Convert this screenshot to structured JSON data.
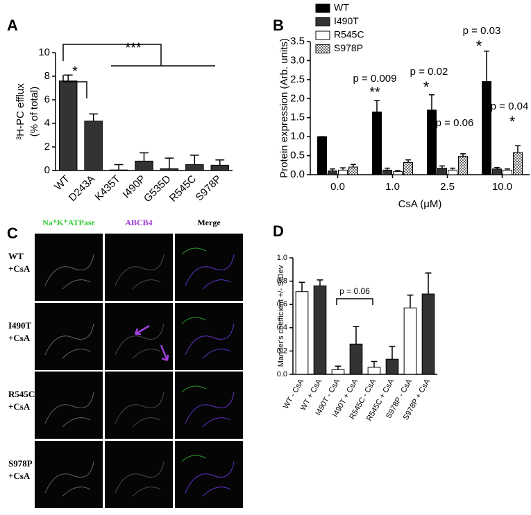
{
  "chart_data": [
    {
      "type": "bar",
      "panel": "A",
      "ylabel": [
        "³H-PC efflux",
        "(% of total)"
      ],
      "categories": [
        "WT",
        "D243A",
        "K435T",
        "I490P",
        "G535D",
        "R545C",
        "S978P"
      ],
      "values": [
        7.6,
        4.2,
        0.05,
        0.8,
        0.15,
        0.5,
        0.45
      ],
      "errors": [
        0.5,
        0.6,
        0.45,
        0.7,
        0.9,
        0.8,
        0.45
      ],
      "color": "#333333",
      "ylim": [
        0,
        10
      ],
      "yticks": [
        0,
        2,
        4,
        6,
        8,
        10
      ],
      "annotations": [
        "*",
        "***"
      ]
    },
    {
      "type": "grouped_bar",
      "panel": "B",
      "ylabel": [
        "Protein expression (Arb. units)"
      ],
      "xlabel": "CsA (μM)",
      "categories": [
        "0.0",
        "1.0",
        "2.5",
        "10.0"
      ],
      "series": [
        {
          "name": "WT",
          "color": "#000000",
          "values": [
            1.0,
            1.65,
            1.7,
            2.45
          ],
          "errors": [
            0,
            0.3,
            0.4,
            0.8
          ]
        },
        {
          "name": "I490T",
          "color": "#333333",
          "values": [
            0.1,
            0.12,
            0.17,
            0.15
          ],
          "errors": [
            0.05,
            0.05,
            0.06,
            0.04
          ]
        },
        {
          "name": "R545C",
          "color": "#ffffff",
          "values": [
            0.12,
            0.08,
            0.12,
            0.12
          ],
          "errors": [
            0.06,
            0.03,
            0.05,
            0.03
          ]
        },
        {
          "name": "S978P",
          "color": "#ffffff",
          "pattern": "dots",
          "values": [
            0.2,
            0.32,
            0.48,
            0.58
          ],
          "errors": [
            0.07,
            0.07,
            0.07,
            0.18
          ]
        }
      ],
      "ylim": [
        0,
        3.5
      ],
      "yticks": [
        {
          "value": 0,
          "label": "0.0"
        },
        0.5,
        {
          "value": 1,
          "label": "1.0"
        },
        1.5,
        {
          "value": 2,
          "label": "2.0"
        },
        2.5,
        {
          "value": 3,
          "label": "3.0"
        },
        3.5
      ],
      "annotations": [
        "p = 0.009",
        "**",
        "p = 0.02",
        "*",
        "p = 0.06",
        "p = 0.03",
        "*",
        "p = 0.04",
        "*"
      ]
    },
    {
      "type": "bar",
      "panel": "D",
      "ylabel": [
        "Mander's coefficient +/- StDev"
      ],
      "categories": [
        "WT - CsA",
        "WT + CsA",
        "I490T - CsA",
        "I490T + CsA",
        "R545C - CsA",
        "R545C + CsA",
        "S978P - CsA",
        "S978P + CsA"
      ],
      "values": [
        0.71,
        0.76,
        0.04,
        0.26,
        0.06,
        0.13,
        0.57,
        0.69
      ],
      "errors": [
        0.08,
        0.05,
        0.03,
        0.15,
        0.05,
        0.11,
        0.11,
        0.18
      ],
      "colors": [
        "#ffffff",
        "#333333",
        "#ffffff",
        "#333333",
        "#ffffff",
        "#333333",
        "#ffffff",
        "#333333"
      ],
      "ylim": [
        0,
        1
      ],
      "yticks": [
        {
          "value": 0,
          "label": "0.0"
        },
        0.2,
        0.4,
        0.6,
        0.8,
        {
          "value": 1,
          "label": "1.0"
        }
      ],
      "annotations": [
        "p = 0.06"
      ]
    }
  ],
  "panel_c": {
    "panel": "C",
    "columns": [
      "Na⁺K⁺ATPase",
      "ABCB4",
      "Merge"
    ],
    "rows": [
      {
        "name": "WT",
        "treatment": "+CsA"
      },
      {
        "name": "I490T",
        "treatment": "+CsA"
      },
      {
        "name": "R545C",
        "treatment": "+CsA"
      },
      {
        "name": "S978P",
        "treatment": "+CsA"
      }
    ]
  }
}
